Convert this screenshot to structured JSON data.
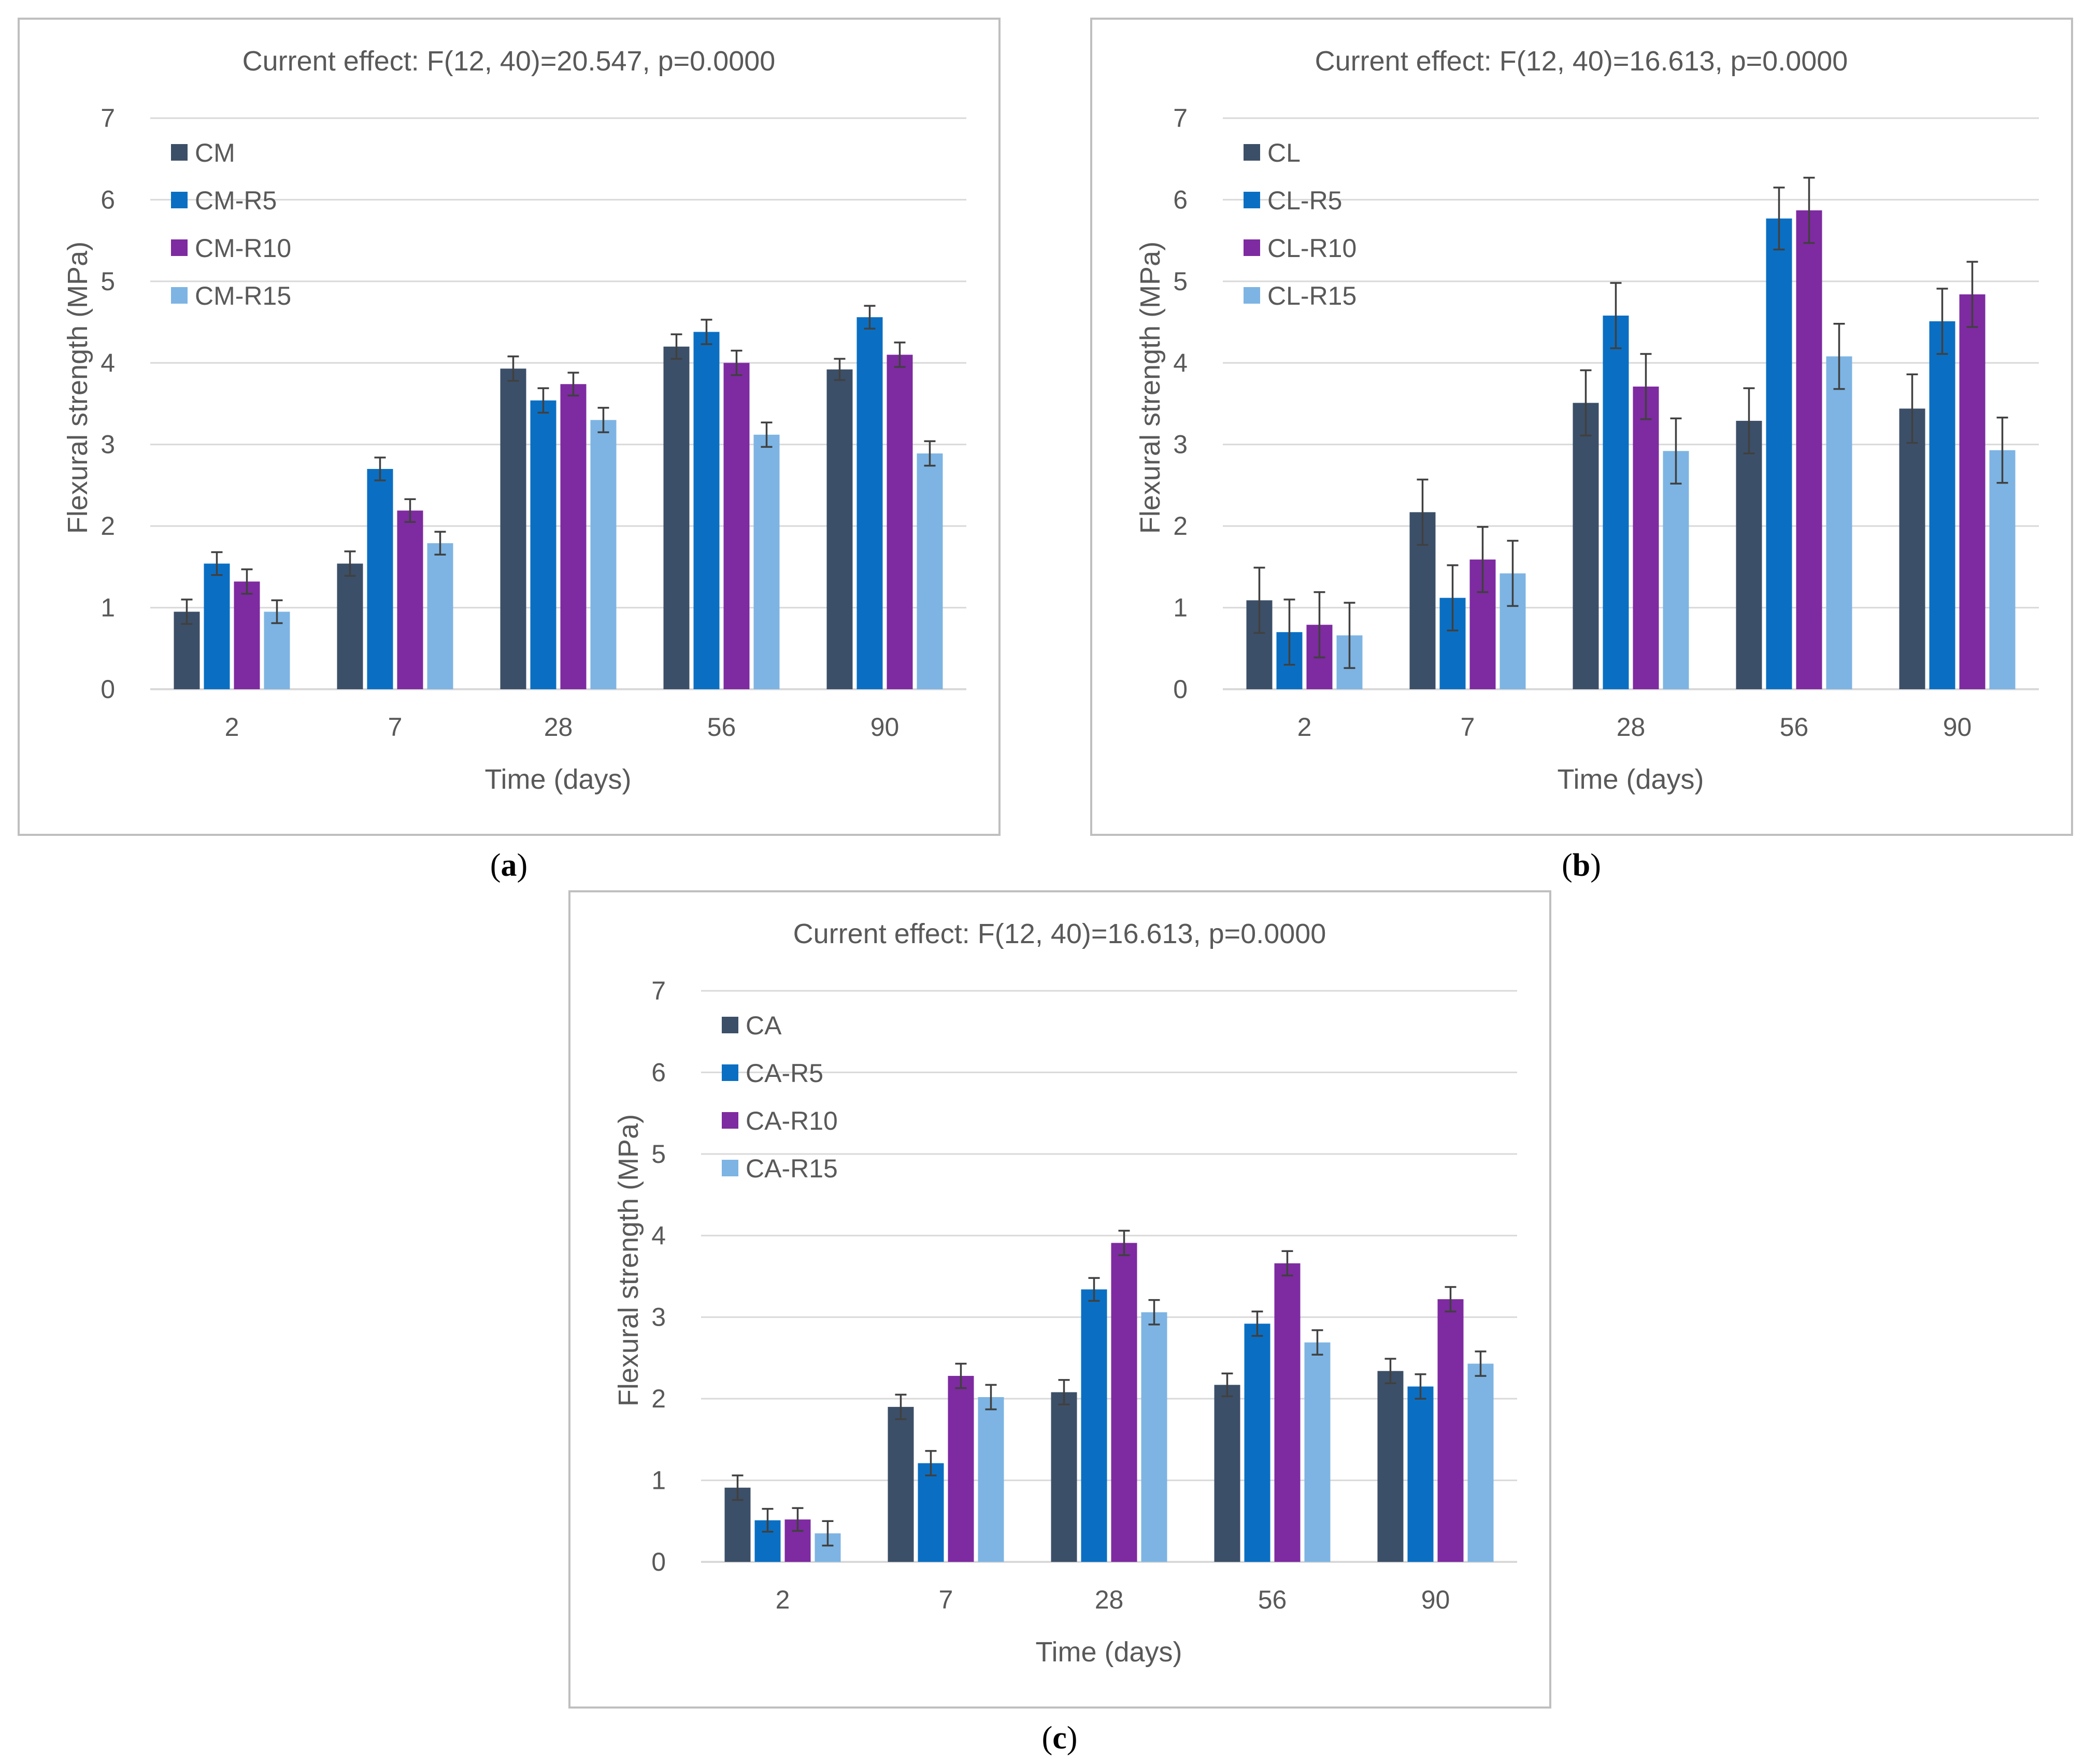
{
  "colors": {
    "series": [
      "#3c4f68",
      "#0a6fc3",
      "#7e2aa1",
      "#7db4e3"
    ],
    "grid": "#d9d9d9",
    "frame": "#bfbfbf",
    "error": "#404040"
  },
  "captions": {
    "a": {
      "open": "(",
      "letter": "a",
      "close": ")"
    },
    "b": {
      "open": "(",
      "letter": "b",
      "close": ")"
    },
    "c": {
      "open": "(",
      "letter": "c",
      "close": ")"
    }
  },
  "chart_data": [
    {
      "id": "a",
      "type": "bar",
      "title": "Current effect: F(12, 40)=20.547, p=0.0000",
      "xlabel": "Time (days)",
      "ylabel": "Flexural strength (MPa)",
      "ylim": [
        0,
        7
      ],
      "yticks": [
        "0",
        "1",
        "2",
        "3",
        "4",
        "5",
        "6",
        "7"
      ],
      "categories": [
        "2",
        "7",
        "28",
        "56",
        "90"
      ],
      "grid": true,
      "legend_position": "top-left",
      "series": [
        {
          "name": "CM",
          "values": [
            0.95,
            1.54,
            3.93,
            4.2,
            3.92
          ],
          "errors": [
            0.15,
            0.15,
            0.15,
            0.15,
            0.13
          ]
        },
        {
          "name": "CM-R5",
          "values": [
            1.54,
            2.7,
            3.54,
            4.38,
            4.56
          ],
          "errors": [
            0.14,
            0.14,
            0.15,
            0.15,
            0.14
          ]
        },
        {
          "name": "CM-R10",
          "values": [
            1.32,
            2.19,
            3.74,
            4.0,
            4.1
          ],
          "errors": [
            0.15,
            0.14,
            0.14,
            0.15,
            0.15
          ]
        },
        {
          "name": "CM-R15",
          "values": [
            0.95,
            1.79,
            3.3,
            3.12,
            2.89
          ],
          "errors": [
            0.14,
            0.14,
            0.15,
            0.15,
            0.15
          ]
        }
      ]
    },
    {
      "id": "b",
      "type": "bar",
      "title": "Current effect: F(12, 40)=16.613, p=0.0000",
      "xlabel": "Time (days)",
      "ylabel": "Flexural strength (MPa)",
      "ylim": [
        0,
        7
      ],
      "yticks": [
        "0",
        "1",
        "2",
        "3",
        "4",
        "5",
        "6",
        "7"
      ],
      "categories": [
        "2",
        "7",
        "28",
        "56",
        "90"
      ],
      "grid": true,
      "legend_position": "top-left",
      "series": [
        {
          "name": "CL",
          "values": [
            1.09,
            2.17,
            3.51,
            3.29,
            3.44
          ],
          "errors": [
            0.4,
            0.4,
            0.4,
            0.4,
            0.42
          ]
        },
        {
          "name": "CL-R5",
          "values": [
            0.7,
            1.12,
            4.58,
            5.77,
            4.51
          ],
          "errors": [
            0.4,
            0.4,
            0.4,
            0.38,
            0.4
          ]
        },
        {
          "name": "CL-R10",
          "values": [
            0.79,
            1.59,
            3.71,
            5.87,
            4.84
          ],
          "errors": [
            0.4,
            0.4,
            0.4,
            0.4,
            0.4
          ]
        },
        {
          "name": "CL-R15",
          "values": [
            0.66,
            1.42,
            2.92,
            4.08,
            2.93
          ],
          "errors": [
            0.4,
            0.4,
            0.4,
            0.4,
            0.4
          ]
        }
      ]
    },
    {
      "id": "c",
      "type": "bar",
      "title": "Current effect: F(12, 40)=16.613, p=0.0000",
      "xlabel": "Time (days)",
      "ylabel": "Flexural strength (MPa)",
      "ylim": [
        0,
        7
      ],
      "yticks": [
        "0",
        "1",
        "2",
        "3",
        "4",
        "5",
        "6",
        "7"
      ],
      "categories": [
        "2",
        "7",
        "28",
        "56",
        "90"
      ],
      "grid": true,
      "legend_position": "top-left",
      "series": [
        {
          "name": "CA",
          "values": [
            0.91,
            1.9,
            2.08,
            2.17,
            2.34
          ],
          "errors": [
            0.15,
            0.15,
            0.15,
            0.14,
            0.15
          ]
        },
        {
          "name": "CA-R5",
          "values": [
            0.51,
            1.21,
            3.34,
            2.92,
            2.15
          ],
          "errors": [
            0.14,
            0.15,
            0.14,
            0.15,
            0.15
          ]
        },
        {
          "name": "CA-R10",
          "values": [
            0.52,
            2.28,
            3.91,
            3.66,
            3.22
          ],
          "errors": [
            0.14,
            0.15,
            0.15,
            0.15,
            0.15
          ]
        },
        {
          "name": "CA-R15",
          "values": [
            0.35,
            2.02,
            3.06,
            2.69,
            2.43
          ],
          "errors": [
            0.15,
            0.15,
            0.15,
            0.15,
            0.15
          ]
        }
      ]
    }
  ]
}
